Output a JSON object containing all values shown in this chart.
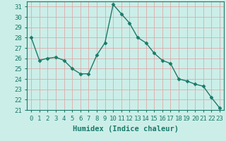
{
  "x": [
    0,
    1,
    2,
    3,
    4,
    5,
    6,
    7,
    8,
    9,
    10,
    11,
    12,
    13,
    14,
    15,
    16,
    17,
    18,
    19,
    20,
    21,
    22,
    23
  ],
  "y": [
    28,
    25.8,
    26.0,
    26.1,
    25.8,
    25.0,
    24.5,
    24.5,
    26.3,
    27.5,
    31.2,
    30.3,
    29.4,
    28.0,
    27.5,
    26.5,
    25.8,
    25.5,
    24.0,
    23.8,
    23.5,
    23.3,
    22.2,
    21.2
  ],
  "line_color": "#1a7a6a",
  "marker": "D",
  "marker_size": 2.5,
  "bg_color": "#cceee8",
  "grid_color": "#ddaaaa",
  "ylim": [
    21,
    31.5
  ],
  "yticks": [
    21,
    22,
    23,
    24,
    25,
    26,
    27,
    28,
    29,
    30,
    31
  ],
  "xlim": [
    -0.5,
    23.5
  ],
  "xticks": [
    0,
    1,
    2,
    3,
    4,
    5,
    6,
    7,
    8,
    9,
    10,
    11,
    12,
    13,
    14,
    15,
    16,
    17,
    18,
    19,
    20,
    21,
    22,
    23
  ],
  "xlabel": "Humidex (Indice chaleur)",
  "xlabel_fontsize": 7.5,
  "tick_fontsize": 6.5,
  "line_width": 1.0
}
